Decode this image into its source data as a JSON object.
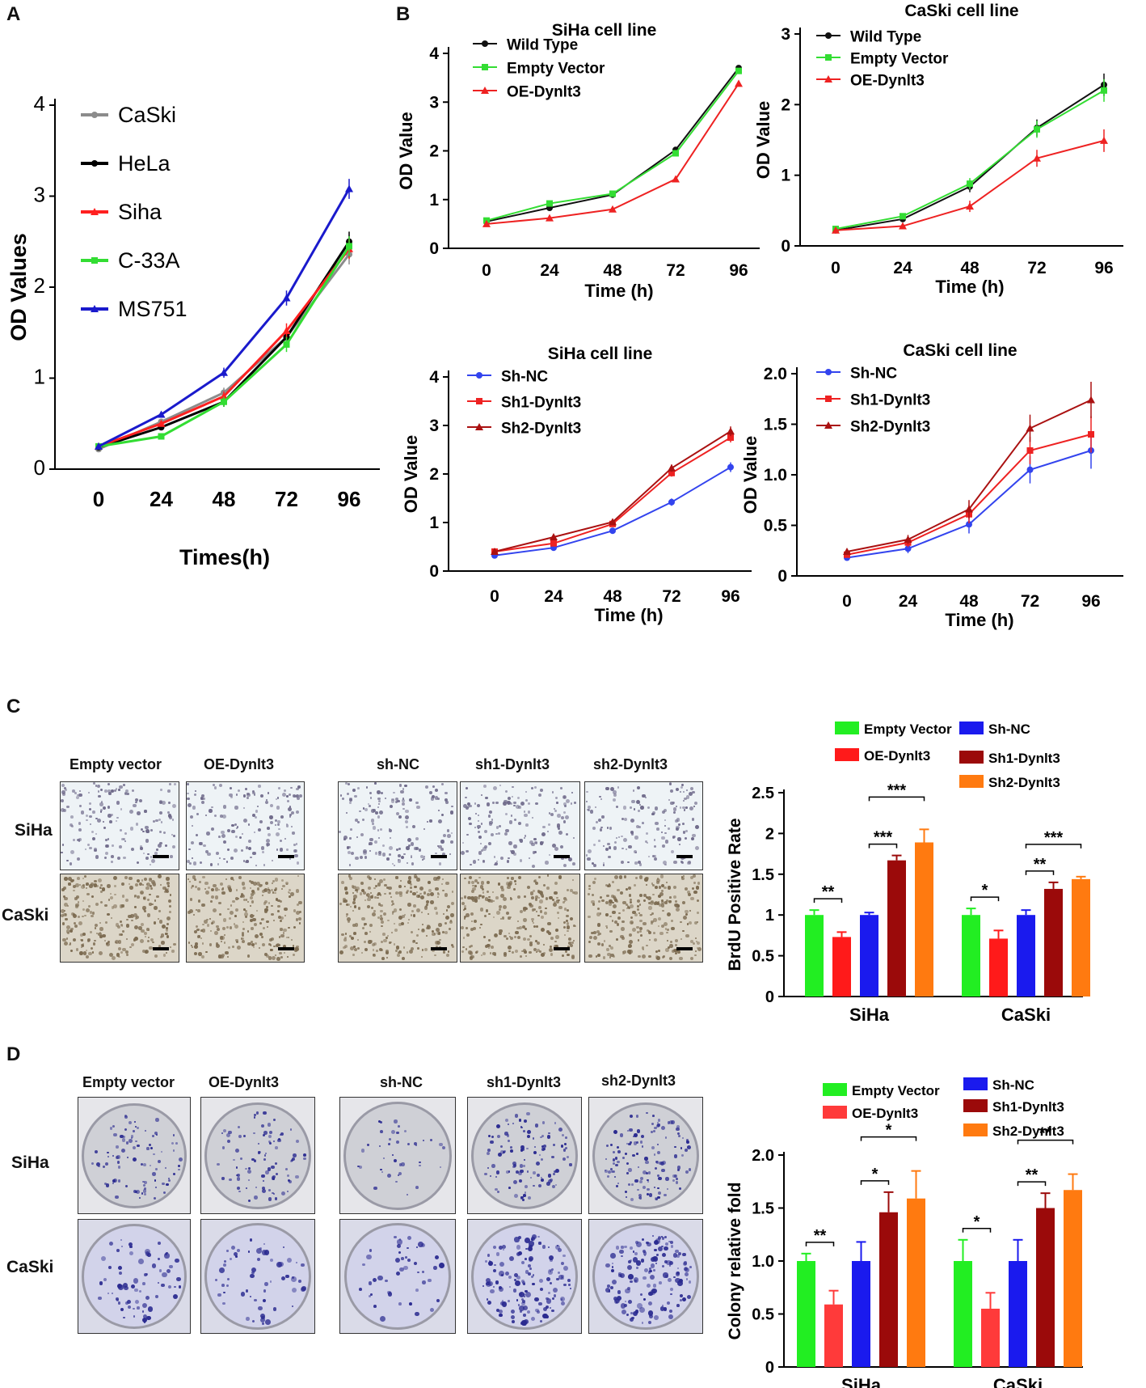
{
  "panels": {
    "A": "A",
    "B": "B",
    "C": "C",
    "D": "D"
  },
  "chart_data": [
    {
      "id": "A",
      "type": "line",
      "title": "",
      "xlabel": "Times(h)",
      "ylabel": "OD Values",
      "categories": [
        "0",
        "24",
        "48",
        "72",
        "96"
      ],
      "ylim": [
        0,
        4
      ],
      "yticks": [
        "0",
        "1",
        "2",
        "3",
        "4"
      ],
      "legend_position": "top-left",
      "series": [
        {
          "name": "CaSki",
          "color": "#8c8c8c",
          "values": [
            0.22,
            0.52,
            0.84,
            1.45,
            2.36
          ]
        },
        {
          "name": "HeLa",
          "color": "#000000",
          "values": [
            0.24,
            0.46,
            0.74,
            1.45,
            2.5
          ]
        },
        {
          "name": "Siha",
          "color": "#ff2020",
          "values": [
            0.25,
            0.5,
            0.8,
            1.52,
            2.42
          ]
        },
        {
          "name": "C-33A",
          "color": "#33dd33",
          "values": [
            0.25,
            0.36,
            0.74,
            1.37,
            2.45
          ]
        },
        {
          "name": "MS751",
          "color": "#1a1acc",
          "values": [
            0.25,
            0.6,
            1.06,
            1.88,
            3.08
          ]
        }
      ]
    },
    {
      "id": "B1",
      "type": "line",
      "title": "SiHa cell line",
      "xlabel": "Time (h)",
      "ylabel": "OD Value",
      "categories": [
        "0",
        "24",
        "48",
        "72",
        "96"
      ],
      "ylim": [
        0,
        4
      ],
      "yticks": [
        "0",
        "1",
        "2",
        "3",
        "4"
      ],
      "legend_position": "top-left",
      "series": [
        {
          "name": "Wild Type",
          "color": "#111111",
          "values": [
            0.55,
            0.83,
            1.1,
            2.02,
            3.7
          ]
        },
        {
          "name": "Empty Vector",
          "color": "#33dd33",
          "values": [
            0.57,
            0.92,
            1.12,
            1.95,
            3.64
          ]
        },
        {
          "name": "OE-Dynlt3",
          "color": "#ee2222",
          "values": [
            0.5,
            0.62,
            0.8,
            1.42,
            3.38
          ]
        }
      ]
    },
    {
      "id": "B2",
      "type": "line",
      "title": "CaSki cell line",
      "xlabel": "Time (h)",
      "ylabel": "OD Value",
      "categories": [
        "0",
        "24",
        "48",
        "72",
        "96"
      ],
      "ylim": [
        0,
        3
      ],
      "yticks": [
        "0",
        "1",
        "2",
        "3"
      ],
      "legend_position": "top-left",
      "series": [
        {
          "name": "Wild Type",
          "color": "#111111",
          "values": [
            0.22,
            0.38,
            0.84,
            1.67,
            2.28
          ]
        },
        {
          "name": "Empty Vector",
          "color": "#33dd33",
          "values": [
            0.24,
            0.42,
            0.88,
            1.65,
            2.2
          ]
        },
        {
          "name": "OE-Dynlt3",
          "color": "#ee2222",
          "values": [
            0.22,
            0.28,
            0.56,
            1.24,
            1.49
          ]
        }
      ]
    },
    {
      "id": "B3",
      "type": "line",
      "title": "SiHa cell line",
      "xlabel": "Time (h)",
      "ylabel": "OD Value",
      "categories": [
        "0",
        "24",
        "48",
        "72",
        "96"
      ],
      "ylim": [
        0,
        4
      ],
      "yticks": [
        "0",
        "1",
        "2",
        "3",
        "4"
      ],
      "legend_position": "top-left",
      "series": [
        {
          "name": "Sh-NC",
          "color": "#3344ee",
          "values": [
            0.32,
            0.48,
            0.83,
            1.42,
            2.14
          ]
        },
        {
          "name": "Sh1-Dynlt3",
          "color": "#ee2222",
          "values": [
            0.4,
            0.57,
            0.97,
            2.02,
            2.75
          ]
        },
        {
          "name": "Sh2-Dynlt3",
          "color": "#aa1111",
          "values": [
            0.4,
            0.7,
            1.01,
            2.12,
            2.88
          ]
        }
      ]
    },
    {
      "id": "B4",
      "type": "line",
      "title": "CaSki cell line",
      "xlabel": "Time (h)",
      "ylabel": "OD Value",
      "categories": [
        "0",
        "24",
        "48",
        "72",
        "96"
      ],
      "ylim": [
        0,
        2
      ],
      "yticks": [
        "0",
        "0.5",
        "1.0",
        "1.5",
        "2.0"
      ],
      "legend_position": "top-left",
      "series": [
        {
          "name": "Sh-NC",
          "color": "#3344ee",
          "values": [
            0.18,
            0.27,
            0.51,
            1.05,
            1.24
          ]
        },
        {
          "name": "Sh1-Dynlt3",
          "color": "#ee2222",
          "values": [
            0.21,
            0.33,
            0.61,
            1.24,
            1.4
          ]
        },
        {
          "name": "Sh2-Dynlt3",
          "color": "#aa1111",
          "values": [
            0.24,
            0.36,
            0.66,
            1.46,
            1.74
          ]
        }
      ]
    },
    {
      "id": "C",
      "type": "bar",
      "title": "",
      "xlabel": "",
      "ylabel": "BrdU Positive Rate",
      "categories": [
        "SiHa",
        "CaSki"
      ],
      "ylim": [
        0,
        2.5
      ],
      "yticks": [
        "0",
        "0.5",
        "1",
        "1.5",
        "2",
        "2.5"
      ],
      "legend_position": "top",
      "series": [
        {
          "name": "Empty Vector",
          "color": "#22ee22",
          "values": [
            1.0,
            1.0
          ],
          "errors": [
            0.06,
            0.08
          ]
        },
        {
          "name": "OE-Dynlt3",
          "color": "#ff1a1a",
          "values": [
            0.73,
            0.71
          ],
          "errors": [
            0.06,
            0.1
          ]
        },
        {
          "name": "Sh-NC",
          "color": "#1a1aee",
          "values": [
            1.0,
            1.0
          ],
          "errors": [
            0.03,
            0.06
          ]
        },
        {
          "name": "Sh1-Dynlt3",
          "color": "#9b0a0a",
          "values": [
            1.67,
            1.32
          ],
          "errors": [
            0.06,
            0.08
          ]
        },
        {
          "name": "Sh2-Dynlt3",
          "color": "#ff7a10",
          "values": [
            1.89,
            1.44
          ],
          "errors": [
            0.16,
            0.03
          ]
        }
      ],
      "significance": [
        "**",
        "***",
        "***",
        "*",
        "**",
        "***"
      ]
    },
    {
      "id": "D",
      "type": "bar",
      "title": "",
      "xlabel": "",
      "ylabel": "Colony relative fold",
      "categories": [
        "SiHa",
        "CaSki"
      ],
      "ylim": [
        0,
        2.0
      ],
      "yticks": [
        "0",
        "0.5",
        "1.0",
        "1.5",
        "2.0"
      ],
      "legend_position": "top",
      "series": [
        {
          "name": "Empty Vector",
          "color": "#22ee22",
          "values": [
            1.0,
            1.0
          ],
          "errors": [
            0.07,
            0.2
          ]
        },
        {
          "name": "OE-Dynlt3",
          "color": "#ff3a3a",
          "values": [
            0.59,
            0.55
          ],
          "errors": [
            0.13,
            0.15
          ]
        },
        {
          "name": "Sh-NC",
          "color": "#1a1aee",
          "values": [
            1.0,
            1.0
          ],
          "errors": [
            0.18,
            0.2
          ]
        },
        {
          "name": "Sh1-Dynlt3",
          "color": "#9b0a0a",
          "values": [
            1.46,
            1.5
          ],
          "errors": [
            0.19,
            0.14
          ]
        },
        {
          "name": "Sh2-Dynlt3",
          "color": "#ff7a10",
          "values": [
            1.59,
            1.67
          ],
          "errors": [
            0.26,
            0.15
          ]
        }
      ],
      "significance": [
        "**",
        "*",
        "*",
        "*",
        "**",
        "**"
      ]
    }
  ],
  "panelC": {
    "columns_left": [
      "Empty  vector",
      "OE-Dynlt3"
    ],
    "columns_right": [
      "sh-NC",
      "sh1-Dynlt3",
      "sh2-Dynlt3"
    ],
    "rows": [
      "SiHa",
      "CaSki"
    ]
  },
  "panelD": {
    "columns_left": [
      "Empty  vector",
      "OE-Dynlt3"
    ],
    "columns_right": [
      "sh-NC",
      "sh1-Dynlt3",
      "sh2-Dynlt3"
    ],
    "rows": [
      "SiHa",
      "CaSki"
    ]
  },
  "colors": {
    "siha_bg": "#eef3f6",
    "caski_bg": "#dcd6c8",
    "siha_dot": "#6f6a8a",
    "caski_dot": "#7b6a50",
    "dish_siha": "#cfd0d6",
    "dish_caski": "#d2d3ea",
    "colony": "#2a2a90"
  }
}
